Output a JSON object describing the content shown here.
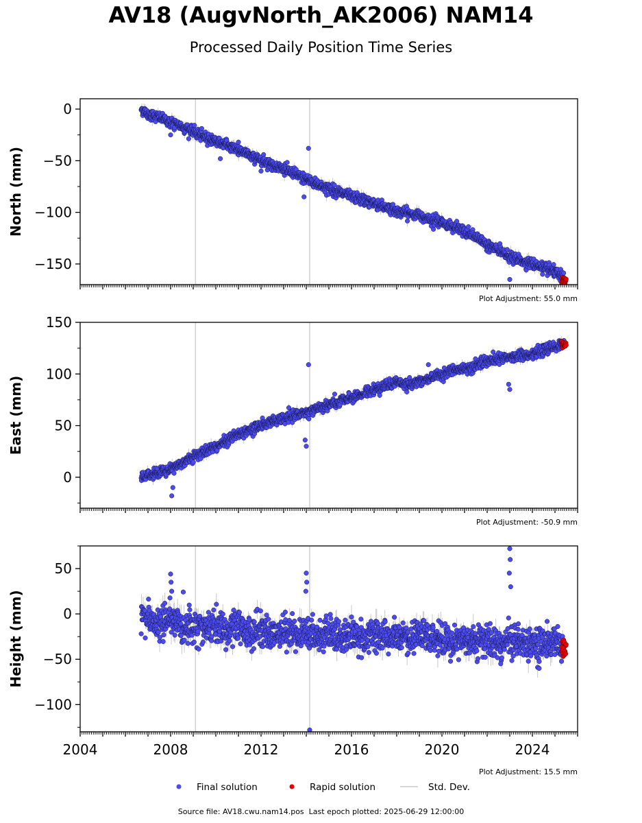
{
  "title": "AV18 (AugvNorth_AK2006) NAM14",
  "subtitle": "Processed Daily Position Time Series",
  "footer": {
    "source_label": "Source file: AV18.cwu.nam14.pos",
    "last_epoch_label": "Last epoch plotted: 2025-06-29 12:00:00"
  },
  "colors": {
    "final": "#4b4bef",
    "rapid": "#e60000",
    "std_dev": "#c8c8c8",
    "vline": "#d0d0d0"
  },
  "legend": {
    "placement": "bottom-center",
    "items": [
      {
        "label": "Final solution",
        "marker": "circle",
        "color": "#4b4bef"
      },
      {
        "label": "Rapid solution",
        "marker": "circle",
        "color": "#e60000"
      },
      {
        "label": "Std. Dev.",
        "marker": "line",
        "color": "#c8c8c8"
      }
    ]
  },
  "chart_data": [
    {
      "type": "scatter",
      "ylabel": "North (mm)",
      "xlim": [
        2004.0,
        2026.0
      ],
      "ylim": [
        -170,
        10
      ],
      "yticks": [
        0,
        -50,
        -100,
        -150
      ],
      "ytick_labels": [
        "0",
        "−50",
        "−100",
        "−150"
      ],
      "show_xtick_labels": false,
      "adjustment": "Plot Adjustment: 55.0 mm",
      "vlines": [
        2009.1,
        2014.15
      ],
      "final_series": {
        "name": "Final solution",
        "x_start": 2006.7,
        "x_end": 2025.4,
        "x": [
          2006.7,
          2007.0,
          2007.5,
          2008.0,
          2008.5,
          2009.0,
          2009.5,
          2010.0,
          2010.5,
          2011.0,
          2011.5,
          2012.0,
          2012.5,
          2013.0,
          2013.5,
          2014.0,
          2014.5,
          2015.0,
          2015.5,
          2016.0,
          2016.5,
          2017.0,
          2017.5,
          2018.0,
          2018.5,
          2019.0,
          2019.5,
          2020.0,
          2020.5,
          2021.0,
          2021.5,
          2022.0,
          2022.5,
          2023.0,
          2023.5,
          2024.0,
          2024.5,
          2025.0,
          2025.4
        ],
        "y": [
          0,
          -5,
          -8,
          -13,
          -17,
          -22,
          -27,
          -31,
          -35,
          -39,
          -45,
          -49,
          -54,
          -58,
          -63,
          -68,
          -73,
          -77,
          -81,
          -85,
          -88,
          -91,
          -95,
          -99,
          -101,
          -103,
          -106,
          -110,
          -114,
          -119,
          -124,
          -131,
          -137,
          -143,
          -147,
          -150,
          -154,
          -158,
          -164
        ],
        "noise_mm": 2.5,
        "outliers": [
          {
            "x": 2008.0,
            "y": -25
          },
          {
            "x": 2010.2,
            "y": -48
          },
          {
            "x": 2011.0,
            "y": -32
          },
          {
            "x": 2014.1,
            "y": -38
          },
          {
            "x": 2013.9,
            "y": -85
          },
          {
            "x": 2023.0,
            "y": -165
          },
          {
            "x": 2012.0,
            "y": -60
          }
        ]
      },
      "rapid_series": {
        "name": "Rapid solution",
        "x_start": 2025.3,
        "x_end": 2025.5,
        "y_center": -166,
        "noise_mm": 1.5
      }
    },
    {
      "type": "scatter",
      "ylabel": "East (mm)",
      "xlim": [
        2004.0,
        2026.0
      ],
      "ylim": [
        -30,
        150
      ],
      "yticks": [
        0,
        50,
        100,
        150
      ],
      "ytick_labels": [
        "0",
        "50",
        "100",
        "150"
      ],
      "show_xtick_labels": false,
      "adjustment": "Plot Adjustment: -50.9 mm",
      "vlines": [
        2009.1,
        2014.15
      ],
      "final_series": {
        "name": "Final solution",
        "x_start": 2006.7,
        "x_end": 2025.4,
        "x": [
          2006.7,
          2007.0,
          2007.5,
          2008.0,
          2008.5,
          2009.0,
          2009.5,
          2010.0,
          2010.5,
          2011.0,
          2011.5,
          2012.0,
          2012.5,
          2013.0,
          2013.5,
          2014.0,
          2014.5,
          2015.0,
          2015.5,
          2016.0,
          2016.5,
          2017.0,
          2017.5,
          2018.0,
          2018.5,
          2019.0,
          2019.5,
          2020.0,
          2020.5,
          2021.0,
          2021.5,
          2022.0,
          2022.5,
          2023.0,
          2023.5,
          2024.0,
          2024.5,
          2025.0,
          2025.4
        ],
        "y": [
          0,
          2,
          5,
          8,
          14,
          20,
          25,
          30,
          36,
          42,
          46,
          50,
          54,
          57,
          60,
          63,
          67,
          70,
          73,
          77,
          81,
          85,
          89,
          92,
          90,
          93,
          96,
          100,
          103,
          105,
          108,
          112,
          114,
          116,
          118,
          120,
          123,
          126,
          129
        ],
        "noise_mm": 2.5,
        "outliers": [
          {
            "x": 2008.05,
            "y": -18
          },
          {
            "x": 2008.1,
            "y": -10
          },
          {
            "x": 2014.1,
            "y": 109
          },
          {
            "x": 2014.0,
            "y": 30
          },
          {
            "x": 2013.95,
            "y": 36
          },
          {
            "x": 2023.0,
            "y": 85
          },
          {
            "x": 2022.95,
            "y": 90
          },
          {
            "x": 2019.4,
            "y": 109
          }
        ]
      },
      "rapid_series": {
        "name": "Rapid solution",
        "x_start": 2025.3,
        "x_end": 2025.5,
        "y_center": 129,
        "noise_mm": 1.5
      }
    },
    {
      "type": "scatter",
      "ylabel": "Height (mm)",
      "xlim": [
        2004.0,
        2026.0
      ],
      "ylim": [
        -130,
        75
      ],
      "yticks": [
        50,
        0,
        -50,
        -100
      ],
      "ytick_labels": [
        "50",
        "0",
        "−50",
        "−100"
      ],
      "show_xtick_labels": true,
      "xticks": [
        2004,
        2008,
        2012,
        2016,
        2020,
        2024
      ],
      "xtick_labels": [
        "2004",
        "2008",
        "2012",
        "2016",
        "2020",
        "2024"
      ],
      "adjustment": "Plot Adjustment: 15.5 mm",
      "vlines": [
        2009.1,
        2014.15
      ],
      "final_series": {
        "name": "Final solution",
        "x_start": 2006.7,
        "x_end": 2025.4,
        "x": [
          2006.7,
          2007.0,
          2007.5,
          2008.0,
          2008.5,
          2009.0,
          2009.5,
          2010.0,
          2010.5,
          2011.0,
          2011.5,
          2012.0,
          2012.5,
          2013.0,
          2013.5,
          2014.0,
          2014.5,
          2015.0,
          2015.5,
          2016.0,
          2016.5,
          2017.0,
          2017.5,
          2018.0,
          2018.5,
          2019.0,
          2019.5,
          2020.0,
          2020.5,
          2021.0,
          2021.5,
          2022.0,
          2022.5,
          2023.0,
          2023.5,
          2024.0,
          2024.5,
          2025.0,
          2025.4
        ],
        "y": [
          0,
          -8,
          -12,
          -5,
          -15,
          -10,
          -18,
          -12,
          -20,
          -14,
          -22,
          -16,
          -24,
          -18,
          -22,
          -20,
          -25,
          -20,
          -26,
          -22,
          -28,
          -24,
          -27,
          -25,
          -30,
          -24,
          -28,
          -26,
          -32,
          -26,
          -30,
          -28,
          -34,
          -26,
          -32,
          -30,
          -34,
          -30,
          -38
        ],
        "noise_mm": 9,
        "outliers": [
          {
            "x": 2008.0,
            "y": 44
          },
          {
            "x": 2008.02,
            "y": 35
          },
          {
            "x": 2008.05,
            "y": 25
          },
          {
            "x": 2014.0,
            "y": 45
          },
          {
            "x": 2014.02,
            "y": 35
          },
          {
            "x": 2013.98,
            "y": 25
          },
          {
            "x": 2014.15,
            "y": -128
          },
          {
            "x": 2023.0,
            "y": 72
          },
          {
            "x": 2023.02,
            "y": 60
          },
          {
            "x": 2022.98,
            "y": 45
          },
          {
            "x": 2023.04,
            "y": 30
          },
          {
            "x": 2022.6,
            "y": -55
          },
          {
            "x": 2024.3,
            "y": -60
          }
        ]
      },
      "rapid_series": {
        "name": "Rapid solution",
        "x_start": 2025.3,
        "x_end": 2025.5,
        "y_center": -38,
        "noise_mm": 5
      }
    }
  ]
}
